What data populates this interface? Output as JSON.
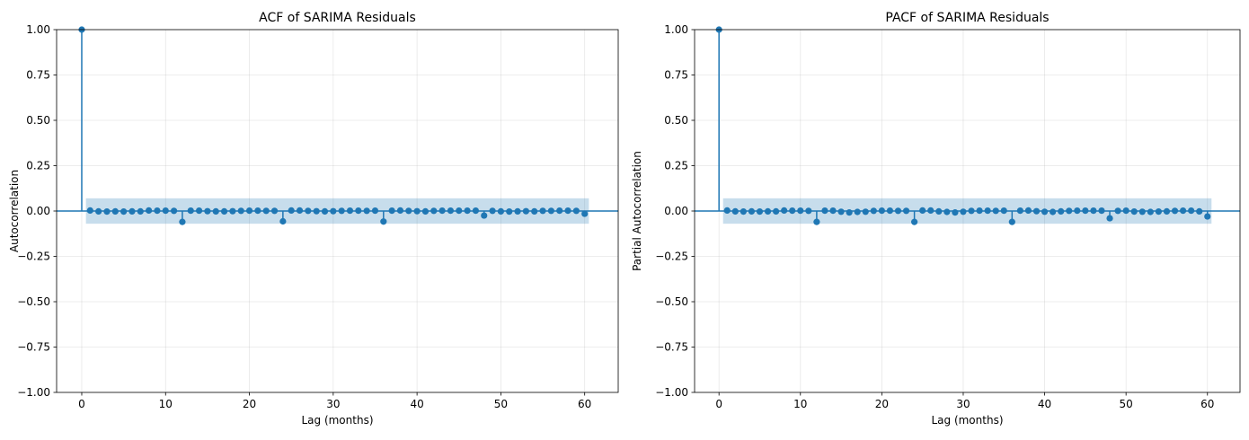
{
  "chart_data": [
    {
      "type": "stem",
      "title": "ACF of SARIMA Residuals",
      "xlabel": "Lag (months)",
      "ylabel": "Autocorrelation",
      "xlim": [
        -3,
        64
      ],
      "ylim": [
        -1.0,
        1.0
      ],
      "xticks": [
        0,
        10,
        20,
        30,
        40,
        50,
        60
      ],
      "yticks": [
        -1.0,
        -0.75,
        -0.5,
        -0.25,
        0.0,
        0.25,
        0.5,
        0.75,
        1.0
      ],
      "grid": true,
      "color": "#1f77b4",
      "confidence_band": {
        "x_range": [
          0.5,
          60.5
        ],
        "lower": -0.07,
        "upper": 0.07,
        "color": "#1f77b4",
        "alpha": 0.25
      },
      "lags": [
        0,
        1,
        2,
        3,
        4,
        5,
        6,
        7,
        8,
        9,
        10,
        11,
        12,
        13,
        14,
        15,
        16,
        17,
        18,
        19,
        20,
        21,
        22,
        23,
        24,
        25,
        26,
        27,
        28,
        29,
        30,
        31,
        32,
        33,
        34,
        35,
        36,
        37,
        38,
        39,
        40,
        41,
        42,
        43,
        44,
        45,
        46,
        47,
        48,
        49,
        50,
        51,
        52,
        53,
        54,
        55,
        56,
        57,
        58,
        59,
        60
      ],
      "values": [
        1.0,
        0.003,
        -0.002,
        -0.003,
        -0.002,
        -0.003,
        -0.002,
        -0.002,
        0.003,
        0.002,
        0.002,
        0.001,
        -0.06,
        0.002,
        0.002,
        -0.001,
        -0.002,
        -0.002,
        -0.001,
        0.001,
        0.002,
        0.002,
        0.001,
        0.001,
        -0.057,
        0.003,
        0.003,
        0.001,
        -0.001,
        -0.002,
        -0.001,
        0.001,
        0.002,
        0.002,
        0.001,
        0.002,
        -0.058,
        0.002,
        0.003,
        0.001,
        -0.001,
        -0.002,
        0.001,
        0.002,
        0.002,
        0.002,
        0.002,
        0.002,
        -0.025,
        0.001,
        -0.002,
        -0.003,
        -0.002,
        -0.001,
        -0.002,
        0.001,
        0.001,
        0.002,
        0.002,
        0.001,
        -0.015
      ]
    },
    {
      "type": "stem",
      "title": "PACF of SARIMA Residuals",
      "xlabel": "Lag (months)",
      "ylabel": "Partial Autocorrelation",
      "xlim": [
        -3,
        64
      ],
      "ylim": [
        -1.0,
        1.0
      ],
      "xticks": [
        0,
        10,
        20,
        30,
        40,
        50,
        60
      ],
      "yticks": [
        -1.0,
        -0.75,
        -0.5,
        -0.25,
        0.0,
        0.25,
        0.5,
        0.75,
        1.0
      ],
      "grid": true,
      "color": "#1f77b4",
      "confidence_band": {
        "x_range": [
          0.5,
          60.5
        ],
        "lower": -0.07,
        "upper": 0.07,
        "color": "#1f77b4",
        "alpha": 0.25
      },
      "lags": [
        0,
        1,
        2,
        3,
        4,
        5,
        6,
        7,
        8,
        9,
        10,
        11,
        12,
        13,
        14,
        15,
        16,
        17,
        18,
        19,
        20,
        21,
        22,
        23,
        24,
        25,
        26,
        27,
        28,
        29,
        30,
        31,
        32,
        33,
        34,
        35,
        36,
        37,
        38,
        39,
        40,
        41,
        42,
        43,
        44,
        45,
        46,
        47,
        48,
        49,
        50,
        51,
        52,
        53,
        54,
        55,
        56,
        57,
        58,
        59,
        60
      ],
      "values": [
        1.0,
        0.003,
        -0.002,
        -0.003,
        -0.002,
        -0.003,
        -0.002,
        -0.002,
        0.003,
        0.002,
        0.002,
        0.001,
        -0.06,
        0.002,
        0.002,
        -0.004,
        -0.008,
        -0.005,
        -0.004,
        0.001,
        0.002,
        0.002,
        0.001,
        0.001,
        -0.06,
        0.003,
        0.003,
        -0.002,
        -0.005,
        -0.008,
        -0.004,
        0.001,
        0.002,
        0.002,
        0.001,
        0.002,
        -0.06,
        0.002,
        0.003,
        -0.001,
        -0.004,
        -0.005,
        -0.002,
        0.001,
        0.002,
        0.002,
        0.002,
        0.002,
        -0.04,
        0.001,
        0.002,
        -0.003,
        -0.004,
        -0.005,
        -0.003,
        -0.002,
        0.001,
        0.002,
        0.002,
        -0.002,
        -0.03
      ]
    }
  ]
}
